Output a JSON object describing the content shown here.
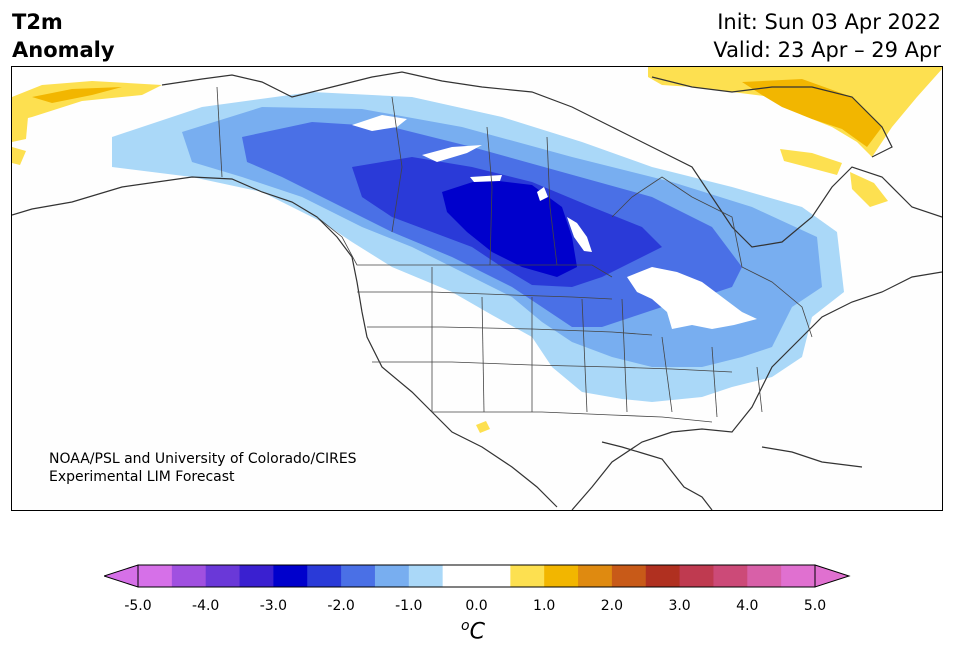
{
  "header": {
    "variable": "T2m",
    "subtitle": "Anomaly",
    "init": "Init: Sun 03 Apr 2022",
    "valid": "Valid: 23 Apr – 29 Apr"
  },
  "credit": {
    "line1": "NOAA/PSL and University of Colorado/CIRES",
    "line2": "Experimental LIM Forecast"
  },
  "colorbar": {
    "ticks": [
      "-5.0",
      "-4.0",
      "-3.0",
      "-2.0",
      "-1.0",
      "0.0",
      "1.0",
      "2.0",
      "3.0",
      "4.0",
      "5.0"
    ],
    "unit_sup": "o",
    "unit": "C",
    "colors": [
      "#d670e8",
      "#a050e0",
      "#6a38d8",
      "#3a20d0",
      "#0000cc",
      "#2a3ad8",
      "#4a70e6",
      "#78aef0",
      "#aad8f8",
      "#ffffff",
      "#ffffff",
      "#fde050",
      "#f2b600",
      "#df8a10",
      "#c85a18",
      "#b03020",
      "#bf3a50",
      "#cc4a78",
      "#d860a8",
      "#e070d0"
    ],
    "under_color": "#d670e8",
    "over_color": "#e070d0"
  },
  "map": {
    "region": "North America",
    "cold_anomaly_center": "Northern Plains / Manitoba",
    "warm_anomaly_areas": [
      "Alaska",
      "Greenland",
      "Baffin Island"
    ]
  }
}
